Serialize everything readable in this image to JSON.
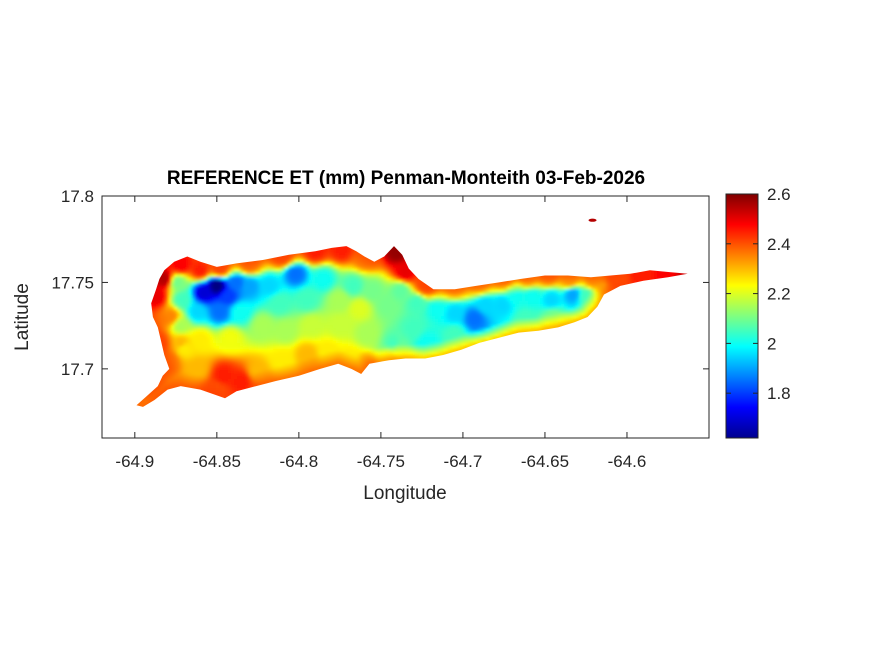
{
  "chart_data": {
    "type": "heatmap",
    "title": "REFERENCE ET (mm) Penman-Monteith 03-Feb-2026",
    "xlabel": "Longitude",
    "ylabel": "Latitude",
    "xlim": [
      -64.92,
      -64.55
    ],
    "ylim": [
      17.66,
      17.8
    ],
    "xticks": [
      -64.9,
      -64.85,
      -64.8,
      -64.75,
      -64.7,
      -64.65,
      -64.6
    ],
    "xtick_labels": [
      "-64.9",
      "-64.85",
      "-64.8",
      "-64.75",
      "-64.7",
      "-64.65",
      "-64.6"
    ],
    "yticks": [
      17.7,
      17.75,
      17.8
    ],
    "ytick_labels": [
      "17.7",
      "17.75",
      "17.8"
    ],
    "colorbar": {
      "colormap": "jet",
      "clim": [
        1.62,
        2.6
      ],
      "ticks": [
        1.8,
        2,
        2.2,
        2.4,
        2.6
      ],
      "tick_labels": [
        "1.8",
        "2",
        "2.2",
        "2.4",
        "2.6"
      ]
    },
    "island_outline": [
      [
        -64.899,
        17.679
      ],
      [
        -64.893,
        17.684
      ],
      [
        -64.886,
        17.69
      ],
      [
        -64.883,
        17.696
      ],
      [
        -64.879,
        17.7
      ],
      [
        -64.882,
        17.708
      ],
      [
        -64.884,
        17.716
      ],
      [
        -64.886,
        17.724
      ],
      [
        -64.889,
        17.73
      ],
      [
        -64.89,
        17.738
      ],
      [
        -64.887,
        17.746
      ],
      [
        -64.885,
        17.752
      ],
      [
        -64.882,
        17.757
      ],
      [
        -64.876,
        17.762
      ],
      [
        -64.868,
        17.765
      ],
      [
        -64.86,
        17.762
      ],
      [
        -64.85,
        17.759
      ],
      [
        -64.838,
        17.761
      ],
      [
        -64.822,
        17.763
      ],
      [
        -64.806,
        17.766
      ],
      [
        -64.79,
        17.768
      ],
      [
        -64.78,
        17.77
      ],
      [
        -64.771,
        17.771
      ],
      [
        -64.765,
        17.768
      ],
      [
        -64.76,
        17.765
      ],
      [
        -64.754,
        17.762
      ],
      [
        -64.748,
        17.765
      ],
      [
        -64.742,
        17.771
      ],
      [
        -64.737,
        17.766
      ],
      [
        -64.733,
        17.758
      ],
      [
        -64.727,
        17.752
      ],
      [
        -64.718,
        17.746
      ],
      [
        -64.705,
        17.746
      ],
      [
        -64.692,
        17.748
      ],
      [
        -64.678,
        17.75
      ],
      [
        -64.665,
        17.752
      ],
      [
        -64.65,
        17.754
      ],
      [
        -64.636,
        17.754
      ],
      [
        -64.622,
        17.753
      ],
      [
        -64.61,
        17.754
      ],
      [
        -64.598,
        17.755
      ],
      [
        -64.586,
        17.757
      ],
      [
        -64.574,
        17.756
      ],
      [
        -64.563,
        17.755
      ],
      [
        -64.575,
        17.753
      ],
      [
        -64.59,
        17.751
      ],
      [
        -64.604,
        17.748
      ],
      [
        -64.614,
        17.743
      ],
      [
        -64.618,
        17.736
      ],
      [
        -64.624,
        17.73
      ],
      [
        -64.632,
        17.727
      ],
      [
        -64.642,
        17.724
      ],
      [
        -64.654,
        17.722
      ],
      [
        -64.666,
        17.721
      ],
      [
        -64.678,
        17.718
      ],
      [
        -64.69,
        17.715
      ],
      [
        -64.701,
        17.711
      ],
      [
        -64.712,
        17.708
      ],
      [
        -64.723,
        17.706
      ],
      [
        -64.735,
        17.706
      ],
      [
        -64.745,
        17.705
      ],
      [
        -64.757,
        17.703
      ],
      [
        -64.762,
        17.697
      ],
      [
        -64.768,
        17.7
      ],
      [
        -64.776,
        17.703
      ],
      [
        -64.787,
        17.7
      ],
      [
        -64.8,
        17.696
      ],
      [
        -64.814,
        17.693
      ],
      [
        -64.826,
        17.69
      ],
      [
        -64.838,
        17.687
      ],
      [
        -64.845,
        17.683
      ],
      [
        -64.86,
        17.688
      ],
      [
        -64.872,
        17.69
      ],
      [
        -64.88,
        17.688
      ],
      [
        -64.888,
        17.682
      ],
      [
        -64.895,
        17.678
      ]
    ],
    "islet": [
      -64.621,
      17.786,
      2.55
    ],
    "anchor_values": [
      [
        -64.86,
        17.757,
        2.45
      ],
      [
        -64.848,
        17.758,
        2.4
      ],
      [
        -64.83,
        17.76,
        2.35
      ],
      [
        -64.81,
        17.765,
        2.4
      ],
      [
        -64.79,
        17.768,
        2.45
      ],
      [
        -64.774,
        17.769,
        2.45
      ],
      [
        -64.76,
        17.764,
        2.35
      ],
      [
        -64.74,
        17.768,
        2.58
      ],
      [
        -64.735,
        17.756,
        2.5
      ],
      [
        -64.723,
        17.748,
        2.4
      ],
      [
        -64.705,
        17.748,
        2.3
      ],
      [
        -64.69,
        17.75,
        2.3
      ],
      [
        -64.675,
        17.752,
        2.3
      ],
      [
        -64.66,
        17.753,
        2.3
      ],
      [
        -64.648,
        17.754,
        2.35
      ],
      [
        -64.635,
        17.751,
        2.3
      ],
      [
        -64.62,
        17.751,
        2.3
      ],
      [
        -64.606,
        17.753,
        2.4
      ],
      [
        -64.592,
        17.755,
        2.45
      ],
      [
        -64.575,
        17.756,
        2.48
      ],
      [
        -64.565,
        17.755,
        2.52
      ],
      [
        -64.898,
        17.68,
        2.3
      ],
      [
        -64.89,
        17.69,
        2.35
      ],
      [
        -64.884,
        17.7,
        2.35
      ],
      [
        -64.887,
        17.742,
        2.5
      ],
      [
        -64.882,
        17.752,
        2.55
      ],
      [
        -64.872,
        17.76,
        2.48
      ],
      [
        -64.878,
        17.73,
        2.35
      ],
      [
        -64.885,
        17.715,
        2.4
      ],
      [
        -64.878,
        17.705,
        2.35
      ],
      [
        -64.874,
        17.75,
        2.1
      ],
      [
        -64.871,
        17.74,
        2.05
      ],
      [
        -64.872,
        17.725,
        2.15
      ],
      [
        -64.87,
        17.712,
        2.25
      ],
      [
        -64.85,
        17.748,
        1.62
      ],
      [
        -64.858,
        17.744,
        1.7
      ],
      [
        -64.843,
        17.742,
        1.8
      ],
      [
        -64.838,
        17.75,
        1.85
      ],
      [
        -64.848,
        17.733,
        1.85
      ],
      [
        -64.862,
        17.733,
        1.95
      ],
      [
        -64.836,
        17.733,
        2.0
      ],
      [
        -64.83,
        17.748,
        1.9
      ],
      [
        -64.818,
        17.748,
        1.95
      ],
      [
        -64.802,
        17.755,
        1.85
      ],
      [
        -64.812,
        17.738,
        2.05
      ],
      [
        -64.795,
        17.74,
        2.05
      ],
      [
        -64.785,
        17.752,
        2.0
      ],
      [
        -64.775,
        17.74,
        2.15
      ],
      [
        -64.767,
        17.748,
        2.05
      ],
      [
        -64.763,
        17.735,
        2.2
      ],
      [
        -64.755,
        17.745,
        2.1
      ],
      [
        -64.746,
        17.737,
        2.1
      ],
      [
        -64.738,
        17.745,
        2.08
      ],
      [
        -64.728,
        17.738,
        2.05
      ],
      [
        -64.716,
        17.735,
        2.0
      ],
      [
        -64.705,
        17.732,
        1.95
      ],
      [
        -64.693,
        17.729,
        1.85
      ],
      [
        -64.686,
        17.737,
        1.95
      ],
      [
        -64.676,
        17.737,
        1.95
      ],
      [
        -64.668,
        17.743,
        2.0
      ],
      [
        -64.658,
        17.742,
        2.0
      ],
      [
        -64.646,
        17.74,
        1.95
      ],
      [
        -64.633,
        17.743,
        1.9
      ],
      [
        -64.625,
        17.742,
        2.05
      ],
      [
        -64.645,
        17.73,
        2.1
      ],
      [
        -64.662,
        17.728,
        2.05
      ],
      [
        -64.705,
        17.72,
        2.05
      ],
      [
        -64.722,
        17.715,
        2.0
      ],
      [
        -64.73,
        17.723,
        2.05
      ],
      [
        -64.742,
        17.714,
        2.05
      ],
      [
        -64.758,
        17.72,
        2.15
      ],
      [
        -64.775,
        17.725,
        2.18
      ],
      [
        -64.792,
        17.725,
        2.18
      ],
      [
        -64.808,
        17.722,
        2.15
      ],
      [
        -64.822,
        17.725,
        2.15
      ],
      [
        -64.842,
        17.718,
        2.22
      ],
      [
        -64.86,
        17.717,
        2.25
      ],
      [
        -64.872,
        17.715,
        2.3
      ],
      [
        -64.862,
        17.7,
        2.3
      ],
      [
        -64.846,
        17.696,
        2.45
      ],
      [
        -64.835,
        17.693,
        2.45
      ],
      [
        -64.825,
        17.698,
        2.3
      ],
      [
        -64.81,
        17.705,
        2.25
      ],
      [
        -64.795,
        17.708,
        2.3
      ],
      [
        -64.782,
        17.71,
        2.25
      ],
      [
        -64.77,
        17.706,
        2.25
      ],
      [
        -64.76,
        17.703,
        2.28
      ],
      [
        -64.745,
        17.707,
        2.15
      ],
      [
        -64.74,
        17.712,
        2.1
      ],
      [
        -64.85,
        17.688,
        2.4
      ]
    ]
  }
}
